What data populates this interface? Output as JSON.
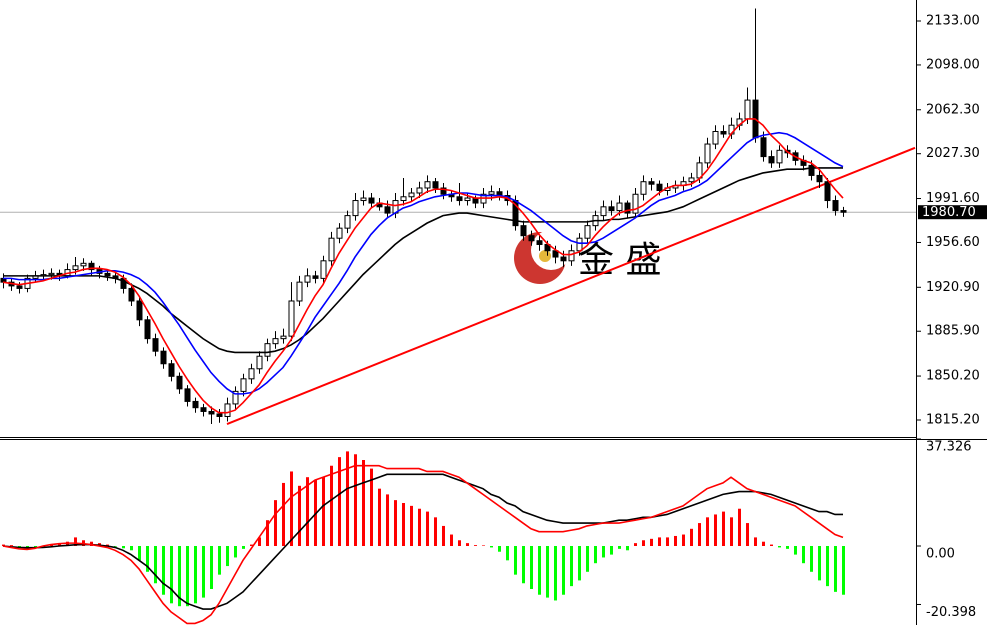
{
  "chart_data": [
    {
      "type": "candlestick",
      "open": [
        1928,
        1925,
        1922,
        1920,
        1928,
        1930,
        1931,
        1932,
        1930,
        1935,
        1938,
        1940,
        1935,
        1932,
        1930,
        1928,
        1920,
        1910,
        1895,
        1880,
        1870,
        1860,
        1850,
        1840,
        1830,
        1825,
        1822,
        1820,
        1818,
        1828,
        1838,
        1848,
        1856,
        1866,
        1876,
        1880,
        1882,
        1910,
        1925,
        1930,
        1928,
        1942,
        1960,
        1968,
        1978,
        1990,
        1992,
        1988,
        1985,
        1980,
        1990,
        1993,
        1996,
        2000,
        2005,
        2000,
        1995,
        1993,
        1990,
        1992,
        1988,
        1995,
        1997,
        1994,
        1990,
        1970,
        1962,
        1958,
        1955,
        1950,
        1945,
        1942,
        1950,
        1960,
        1970,
        1978,
        1985,
        1982,
        1988,
        1980,
        1995,
        2005,
        2003,
        1998,
        2000,
        2002,
        2005,
        2008,
        2020,
        2035,
        2045,
        2043,
        2050,
        2055,
        2070,
        2040,
        2025,
        2020,
        2030,
        2028,
        2022,
        2018,
        2010,
        2005,
        1990,
        1982
      ],
      "high": [
        1932,
        1928,
        1925,
        1931,
        1934,
        1935,
        1936,
        1935,
        1940,
        1945,
        1944,
        1942,
        1938,
        1935,
        1933,
        1931,
        1924,
        1913,
        1898,
        1884,
        1873,
        1863,
        1853,
        1843,
        1833,
        1828,
        1826,
        1824,
        1833,
        1842,
        1852,
        1860,
        1870,
        1880,
        1886,
        1888,
        1925,
        1930,
        1936,
        1934,
        1946,
        1965,
        1972,
        1982,
        1996,
        1998,
        1996,
        1992,
        1990,
        1996,
        2008,
        2000,
        2005,
        2010,
        2008,
        2004,
        1998,
        2004,
        1996,
        1994,
        2000,
        2002,
        2000,
        1998,
        1994,
        1974,
        1966,
        1962,
        1958,
        1954,
        1950,
        1955,
        1964,
        1974,
        1982,
        1990,
        1990,
        1994,
        1990,
        2000,
        2010,
        2008,
        2006,
        2004,
        2006,
        2009,
        2012,
        2025,
        2040,
        2050,
        2050,
        2056,
        2060,
        2080,
        2143,
        2045,
        2030,
        2034,
        2034,
        2030,
        2026,
        2022,
        2014,
        2008,
        1994,
        1985
      ],
      "low": [
        1920,
        1918,
        1916,
        1917,
        1925,
        1926,
        1927,
        1926,
        1928,
        1931,
        1934,
        1930,
        1928,
        1926,
        1924,
        1916,
        1906,
        1890,
        1876,
        1866,
        1856,
        1846,
        1836,
        1826,
        1821,
        1818,
        1812,
        1813,
        1814,
        1824,
        1834,
        1844,
        1852,
        1862,
        1872,
        1876,
        1878,
        1906,
        1921,
        1924,
        1924,
        1938,
        1956,
        1964,
        1974,
        1986,
        1984,
        1982,
        1977,
        1976,
        1986,
        1989,
        1992,
        1996,
        1996,
        1991,
        1989,
        1986,
        1986,
        1984,
        1984,
        1990,
        1990,
        1986,
        1966,
        1958,
        1954,
        1950,
        1946,
        1940,
        1937,
        1938,
        1946,
        1956,
        1966,
        1974,
        1978,
        1978,
        1976,
        1976,
        1990,
        1998,
        1994,
        1994,
        1996,
        1998,
        2001,
        2004,
        2016,
        2031,
        2040,
        2039,
        2046,
        2051,
        2036,
        2021,
        2016,
        2016,
        2024,
        2018,
        2014,
        2006,
        2000,
        1984,
        1978,
        1977
      ],
      "close": [
        1925,
        1922,
        1920,
        1928,
        1930,
        1931,
        1932,
        1930,
        1935,
        1938,
        1940,
        1935,
        1932,
        1930,
        1928,
        1920,
        1910,
        1895,
        1880,
        1870,
        1860,
        1850,
        1840,
        1830,
        1825,
        1822,
        1820,
        1818,
        1828,
        1838,
        1848,
        1856,
        1866,
        1876,
        1880,
        1882,
        1910,
        1925,
        1930,
        1928,
        1942,
        1960,
        1968,
        1978,
        1990,
        1992,
        1988,
        1985,
        1980,
        1990,
        1993,
        1996,
        2000,
        2005,
        2000,
        1995,
        1993,
        1990,
        1992,
        1988,
        1995,
        1997,
        1994,
        1990,
        1970,
        1962,
        1958,
        1955,
        1950,
        1945,
        1942,
        1950,
        1960,
        1970,
        1978,
        1985,
        1982,
        1988,
        1980,
        1995,
        2005,
        2003,
        1998,
        2000,
        2002,
        2005,
        2008,
        2020,
        2035,
        2045,
        2043,
        2050,
        2055,
        2070,
        2040,
        2025,
        2020,
        2030,
        2028,
        2022,
        2018,
        2010,
        2005,
        1990,
        1982,
        1980.7
      ],
      "up_color": "#ffffff",
      "down_color": "#000000",
      "overlays": [
        {
          "color": "#000000",
          "values": [
            1930,
            1930,
            1930,
            1930,
            1930,
            1930,
            1930,
            1930,
            1930,
            1930,
            1930,
            1930,
            1930,
            1929,
            1928,
            1926,
            1923,
            1920,
            1916,
            1911,
            1906,
            1900,
            1895,
            1890,
            1885,
            1880,
            1876,
            1872,
            1870,
            1869,
            1869,
            1869,
            1869,
            1869,
            1870,
            1872,
            1875,
            1879,
            1884,
            1890,
            1896,
            1903,
            1910,
            1917,
            1924,
            1931,
            1937,
            1943,
            1949,
            1955,
            1960,
            1964,
            1968,
            1972,
            1975,
            1978,
            1979,
            1980,
            1980,
            1979,
            1978,
            1977,
            1976,
            1975,
            1974,
            1973,
            1973,
            1973,
            1973,
            1973,
            1973,
            1973,
            1973,
            1973,
            1974,
            1974,
            1975,
            1975,
            1976,
            1977,
            1978,
            1979,
            1980,
            1981,
            1983,
            1985,
            1988,
            1991,
            1994,
            1997,
            2000,
            2003,
            2006,
            2008,
            2010,
            2012,
            2013,
            2014,
            2015,
            2015,
            2015,
            2016,
            2016,
            2016,
            2016,
            2016
          ]
        },
        {
          "color": "#0000ff",
          "values": [
            1928,
            1928,
            1927,
            1927,
            1927,
            1927,
            1928,
            1928,
            1929,
            1930,
            1931,
            1932,
            1933,
            1934,
            1934,
            1933,
            1931,
            1928,
            1923,
            1917,
            1909,
            1900,
            1891,
            1881,
            1871,
            1862,
            1853,
            1846,
            1840,
            1836,
            1836,
            1837,
            1840,
            1845,
            1851,
            1857,
            1866,
            1876,
            1886,
            1897,
            1906,
            1915,
            1924,
            1934,
            1945,
            1954,
            1963,
            1970,
            1976,
            1980,
            1984,
            1986,
            1989,
            1991,
            1993,
            1994,
            1995,
            1996,
            1996,
            1995,
            1994,
            1994,
            1994,
            1993,
            1990,
            1986,
            1982,
            1977,
            1972,
            1967,
            1962,
            1958,
            1956,
            1956,
            1957,
            1960,
            1964,
            1968,
            1972,
            1976,
            1981,
            1986,
            1990,
            1992,
            1994,
            1997,
            1999,
            2002,
            2006,
            2012,
            2018,
            2024,
            2030,
            2036,
            2040,
            2042,
            2043,
            2044,
            2043,
            2040,
            2036,
            2032,
            2028,
            2024,
            2020,
            2017
          ]
        },
        {
          "color": "#ff0000",
          "values": [
            1925,
            1924,
            1923,
            1924,
            1925,
            1926,
            1928,
            1930,
            1932,
            1933,
            1935,
            1936,
            1936,
            1935,
            1933,
            1929,
            1923,
            1914,
            1903,
            1892,
            1880,
            1869,
            1858,
            1848,
            1839,
            1831,
            1825,
            1821,
            1821,
            1823,
            1829,
            1836,
            1843,
            1853,
            1862,
            1870,
            1879,
            1891,
            1903,
            1914,
            1923,
            1936,
            1948,
            1958,
            1968,
            1976,
            1984,
            1988,
            1987,
            1986,
            1987,
            1989,
            1993,
            1997,
            1999,
            1999,
            1998,
            1996,
            1994,
            1992,
            1992,
            1992,
            1993,
            1992,
            1987,
            1980,
            1972,
            1963,
            1956,
            1951,
            1947,
            1947,
            1949,
            1954,
            1962,
            1969,
            1975,
            1980,
            1982,
            1983,
            1986,
            1991,
            1996,
            2000,
            2002,
            2002,
            2003,
            2007,
            2014,
            2023,
            2033,
            2043,
            2050,
            2055,
            2055,
            2050,
            2042,
            2036,
            2029,
            2025,
            2022,
            2020,
            2015,
            2007,
            1999,
            1992
          ]
        }
      ],
      "trendline": {
        "color": "#ff0000",
        "from": {
          "x": 28,
          "y": 1812
        },
        "to": {
          "x": 114,
          "y": 2032
        }
      },
      "last_price": {
        "value": 1980.7,
        "label": "1980.70"
      },
      "watermark": "金 盛",
      "ylim": [
        1801.66,
        2149.73
      ],
      "yticks": [
        {
          "value": 1815.2,
          "label": "1815.20"
        },
        {
          "value": 1850.2,
          "label": "1850.20"
        },
        {
          "value": 1885.9,
          "label": "1885.90"
        },
        {
          "value": 1920.9,
          "label": "1920.90"
        },
        {
          "value": 1956.6,
          "label": "1956.60"
        },
        {
          "value": 1991.6,
          "label": "1991.60"
        },
        {
          "value": 2027.3,
          "label": "2027.30"
        },
        {
          "value": 2062.3,
          "label": "2062.30"
        },
        {
          "value": 2098,
          "label": "2098.00"
        },
        {
          "value": 2133,
          "label": "2133.00"
        }
      ]
    },
    {
      "type": "macd",
      "histogram": {
        "up_color": "#ff0000",
        "down_color": "#00ff00",
        "values": [
          0.5,
          0.3,
          -0.5,
          -1,
          -0.8,
          0,
          0.5,
          1,
          1.5,
          3,
          2,
          1.5,
          1,
          0.5,
          -0.2,
          -0.8,
          -1.5,
          -5,
          -9,
          -13,
          -17,
          -20,
          -21,
          -21,
          -20,
          -18,
          -15,
          -10,
          -7,
          -4,
          -1,
          0.5,
          3,
          9,
          16,
          22,
          26,
          21,
          24,
          23,
          24,
          28,
          31,
          33,
          32,
          30,
          27,
          20,
          18,
          16,
          15,
          14,
          13,
          12,
          10,
          7,
          4,
          2,
          1,
          0.3,
          0.2,
          -0.5,
          -2,
          -5,
          -10,
          -13,
          -15,
          -17,
          -18,
          -19,
          -17,
          -14,
          -12,
          -9,
          -6,
          -4,
          -3,
          -1,
          -1.5,
          1,
          2,
          2.5,
          3,
          3,
          3.5,
          4,
          6,
          8,
          10,
          11,
          12,
          10,
          13,
          8,
          3,
          1.5,
          0.5,
          -0.5,
          -1,
          -3,
          -6,
          -9,
          -12,
          -14,
          -16,
          -17
        ]
      },
      "lines": [
        {
          "color": "#000000",
          "values": [
            0,
            -0.3,
            -0.5,
            -0.6,
            -0.6,
            -0.5,
            -0.3,
            0,
            0.2,
            0.4,
            0.5,
            0.5,
            0.3,
            0,
            -0.5,
            -1.5,
            -3,
            -5,
            -7,
            -10,
            -13,
            -15,
            -18,
            -20,
            -21,
            -22,
            -22,
            -21,
            -20,
            -18,
            -16,
            -13,
            -10,
            -7,
            -4,
            -1,
            2,
            5,
            8,
            11,
            14,
            16,
            18,
            20,
            21,
            22,
            23,
            24,
            25,
            25,
            25,
            25,
            25,
            25,
            25,
            25,
            24,
            23,
            22,
            21,
            20,
            18,
            17,
            15,
            14,
            12,
            11,
            10,
            9,
            8.5,
            8,
            8,
            8,
            8,
            8,
            8,
            8.5,
            9,
            9,
            9.5,
            10,
            10,
            10.5,
            11,
            12,
            13,
            14,
            15,
            16,
            17,
            18,
            18.5,
            19,
            19,
            19,
            18.5,
            18,
            17,
            16,
            15,
            14,
            13,
            12,
            12,
            11,
            11
          ]
        },
        {
          "color": "#ff0000",
          "values": [
            0,
            -0.5,
            -1,
            -1.2,
            -0.8,
            0,
            0.5,
            0.8,
            1,
            1,
            0.8,
            0.5,
            0,
            -0.5,
            -1.5,
            -3,
            -5,
            -8,
            -12,
            -16,
            -20,
            -23,
            -25,
            -27,
            -27,
            -26,
            -24,
            -20,
            -15,
            -10,
            -5,
            -1,
            3,
            7,
            11,
            14,
            17,
            19,
            21,
            23,
            24,
            25,
            26,
            27,
            28,
            28,
            28,
            28,
            27,
            27,
            27,
            27,
            27,
            26,
            26,
            26,
            25,
            24,
            22,
            20,
            18,
            16,
            14,
            12,
            10,
            8,
            6,
            5,
            5,
            5,
            5,
            5.5,
            6,
            7,
            7.5,
            8,
            8,
            8,
            8.5,
            9,
            9.5,
            10,
            11,
            12,
            13,
            14,
            16,
            18,
            20,
            21,
            22,
            24,
            22,
            20,
            19,
            18,
            17,
            16,
            15,
            14,
            12,
            10,
            8,
            6,
            4,
            3
          ]
        }
      ],
      "ylim": [
        -27.56,
        37.326
      ],
      "yticks": [
        {
          "value": 37.326,
          "label": "37.326"
        },
        {
          "value": 0,
          "label": "0.00"
        },
        {
          "value": -20.398,
          "label": "-20.398"
        }
      ]
    }
  ]
}
